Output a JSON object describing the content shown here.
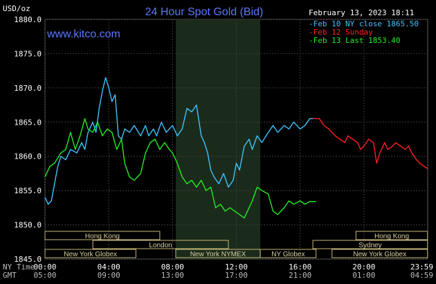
{
  "header": {
    "title": "24 Hour Spot Gold (Bid)",
    "brand": "www.kitco.com",
    "timestamp": "February 13, 2023 18:11",
    "y_unit": "USD/oz"
  },
  "legend": [
    {
      "label": "Feb 10 NY close 1865.50",
      "color": "#3ec3ff"
    },
    {
      "label": "Feb 12 Sunday",
      "color": "#ff2020"
    },
    {
      "label": "Feb 13 Last 1853.40",
      "color": "#22ee22"
    }
  ],
  "axis_labels": {
    "ny_time": "NY Time",
    "gmt": "GMT",
    "ny_ticks": [
      "00:00",
      "04:00",
      "08:00",
      "12:00",
      "16:00",
      "20:00",
      "23:59"
    ],
    "gmt_ticks": [
      "05:00",
      "09:00",
      "13:00",
      "17:00",
      "21:00",
      "01:00",
      "04:59"
    ]
  },
  "sessions": [
    {
      "name": "Hong Kong",
      "start": 0,
      "end": 7.2,
      "row": 0
    },
    {
      "name": "Hong Kong",
      "start": 19.5,
      "end": 23.99,
      "row": 0
    },
    {
      "name": "London",
      "start": 3.0,
      "end": 11.5,
      "row": 1
    },
    {
      "name": "Sydney",
      "start": 16.8,
      "end": 23.99,
      "row": 1
    },
    {
      "name": "New York Globex",
      "start": 0,
      "end": 5.7,
      "row": 2
    },
    {
      "name": "New York NYMEX",
      "start": 8.2,
      "end": 13.5,
      "row": 2
    },
    {
      "name": "NY Globex",
      "start": 13.5,
      "end": 17.0,
      "row": 2
    },
    {
      "name": "New York Globex",
      "start": 18.0,
      "end": 23.99,
      "row": 2
    }
  ],
  "chart_data": {
    "type": "line",
    "title": "24 Hour Spot Gold (Bid)",
    "ylabel": "USD/oz",
    "ylim": [
      1845.0,
      1880.0
    ],
    "xlim": [
      0,
      24
    ],
    "yticks": [
      "1845.0",
      "1850.0",
      "1855.0",
      "1860.0",
      "1865.0",
      "1870.0",
      "1875.0",
      "1880.0"
    ],
    "grid": true,
    "shaded_region": [
      8.2,
      13.5
    ],
    "series": [
      {
        "name": "Feb 10 NY close 1865.50",
        "color": "#3ec3ff",
        "x": [
          0,
          0.2,
          0.4,
          0.6,
          0.8,
          1.0,
          1.3,
          1.6,
          2.0,
          2.3,
          2.5,
          2.7,
          3.0,
          3.2,
          3.4,
          3.6,
          3.8,
          4.0,
          4.2,
          4.4,
          4.6,
          4.8,
          5.0,
          5.3,
          5.6,
          6.0,
          6.3,
          6.5,
          6.8,
          7.0,
          7.3,
          7.6,
          8.0,
          8.3,
          8.6,
          8.9,
          9.2,
          9.5,
          9.8,
          10.0,
          10.2,
          10.4,
          10.6,
          10.9,
          11.2,
          11.5,
          11.8,
          12.0,
          12.2,
          12.5,
          12.8,
          13.0,
          13.3,
          13.6,
          14.0,
          14.3,
          14.6,
          15.0,
          15.3,
          15.6,
          16.0,
          16.3,
          16.6,
          17.0
        ],
        "values": [
          1854.0,
          1853.0,
          1853.5,
          1856.0,
          1858.5,
          1860.0,
          1859.5,
          1861.0,
          1860.5,
          1862.0,
          1861.0,
          1863.5,
          1865.0,
          1863.5,
          1867.0,
          1869.5,
          1871.5,
          1870.0,
          1868.0,
          1869.0,
          1863.0,
          1862.5,
          1864.0,
          1863.5,
          1864.5,
          1863.0,
          1864.5,
          1863.0,
          1864.0,
          1863.0,
          1865.0,
          1863.5,
          1864.5,
          1863.0,
          1864.0,
          1867.0,
          1866.5,
          1867.5,
          1863.0,
          1862.0,
          1860.5,
          1858.0,
          1857.0,
          1856.0,
          1857.5,
          1855.5,
          1856.5,
          1859.0,
          1858.0,
          1861.5,
          1862.5,
          1861.0,
          1863.0,
          1862.0,
          1863.5,
          1864.5,
          1863.5,
          1864.5,
          1864.0,
          1865.0,
          1864.0,
          1864.5,
          1865.5,
          1865.5
        ]
      },
      {
        "name": "Feb 12 Sunday",
        "color": "#ff2020",
        "x": [
          16.8,
          17.2,
          17.5,
          17.8,
          18.2,
          18.5,
          18.8,
          19.0,
          19.3,
          19.6,
          19.8,
          20.0,
          20.3,
          20.6,
          20.8,
          21.0,
          21.3,
          21.5,
          21.8,
          22.0,
          22.3,
          22.6,
          22.8,
          23.0,
          23.3,
          23.5,
          23.8,
          23.99
        ],
        "values": [
          1865.5,
          1865.5,
          1864.5,
          1864.0,
          1863.0,
          1862.5,
          1862.0,
          1863.0,
          1862.5,
          1862.0,
          1861.0,
          1861.5,
          1862.5,
          1862.0,
          1859.0,
          1860.5,
          1862.0,
          1861.0,
          1861.5,
          1862.0,
          1861.5,
          1861.0,
          1861.5,
          1860.5,
          1859.5,
          1859.0,
          1858.5,
          1858.2
        ]
      },
      {
        "name": "Feb 13 Last 1853.40",
        "color": "#22ee22",
        "x": [
          0,
          0.3,
          0.6,
          1.0,
          1.3,
          1.6,
          1.9,
          2.2,
          2.5,
          2.7,
          3.0,
          3.3,
          3.6,
          3.9,
          4.2,
          4.5,
          4.8,
          5.0,
          5.3,
          5.6,
          6.0,
          6.3,
          6.6,
          6.9,
          7.2,
          7.5,
          7.8,
          8.0,
          8.3,
          8.6,
          8.9,
          9.2,
          9.5,
          9.8,
          10.1,
          10.4,
          10.7,
          11.0,
          11.3,
          11.6,
          11.9,
          12.2,
          12.5,
          12.8,
          13.0,
          13.3,
          13.6,
          14.0,
          14.3,
          14.6,
          15.0,
          15.3,
          15.6,
          16.0,
          16.3,
          16.6,
          17.0
        ],
        "values": [
          1857.0,
          1858.5,
          1859.0,
          1860.5,
          1861.0,
          1863.5,
          1861.0,
          1863.0,
          1865.5,
          1864.0,
          1863.5,
          1865.0,
          1863.0,
          1864.0,
          1863.5,
          1861.0,
          1862.5,
          1859.0,
          1857.0,
          1856.5,
          1857.5,
          1860.5,
          1862.0,
          1862.5,
          1861.0,
          1862.0,
          1861.0,
          1860.5,
          1859.0,
          1857.0,
          1856.0,
          1856.5,
          1855.5,
          1856.5,
          1855.0,
          1855.5,
          1852.5,
          1853.0,
          1852.0,
          1852.5,
          1852.0,
          1851.5,
          1851.0,
          1852.5,
          1853.5,
          1855.5,
          1855.0,
          1854.5,
          1852.0,
          1851.5,
          1852.5,
          1853.5,
          1853.0,
          1853.5,
          1853.0,
          1853.4,
          1853.4
        ]
      }
    ]
  }
}
